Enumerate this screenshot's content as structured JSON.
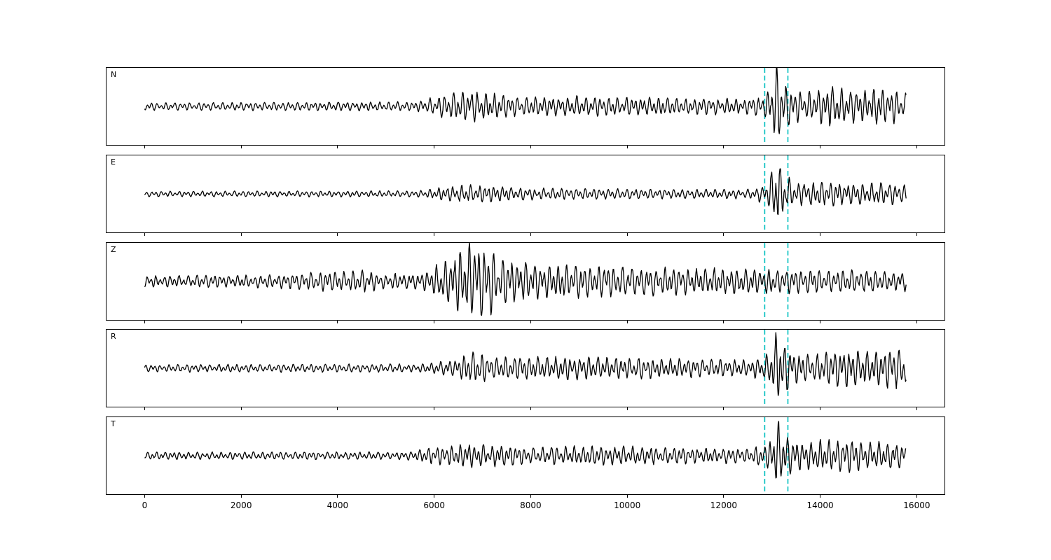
{
  "figure": {
    "background": "#ffffff",
    "title": ""
  },
  "chart_data": {
    "type": "line",
    "kind": "multi-panel-seismogram-waveforms",
    "title": "",
    "xlabel": "",
    "ylabel": "",
    "waveform_color": "#000000",
    "panels": [
      {
        "label": "N",
        "seed": 11,
        "envelope": [
          [
            0,
            0.1
          ],
          [
            5600,
            0.12
          ],
          [
            6200,
            0.3
          ],
          [
            6700,
            0.42
          ],
          [
            7200,
            0.34
          ],
          [
            7900,
            0.24
          ],
          [
            9000,
            0.27
          ],
          [
            10500,
            0.24
          ],
          [
            12500,
            0.2
          ],
          [
            12850,
            0.3
          ],
          [
            12980,
            0.6
          ],
          [
            13080,
            1.0
          ],
          [
            13200,
            0.85
          ],
          [
            13400,
            0.45
          ],
          [
            13800,
            0.38
          ],
          [
            14250,
            0.58
          ],
          [
            14700,
            0.42
          ],
          [
            15200,
            0.52
          ],
          [
            15784,
            0.38
          ]
        ]
      },
      {
        "label": "E",
        "seed": 22,
        "envelope": [
          [
            0,
            0.07
          ],
          [
            5600,
            0.08
          ],
          [
            6300,
            0.2
          ],
          [
            6900,
            0.24
          ],
          [
            7500,
            0.19
          ],
          [
            8400,
            0.15
          ],
          [
            10500,
            0.13
          ],
          [
            12500,
            0.12
          ],
          [
            12900,
            0.28
          ],
          [
            13020,
            0.7
          ],
          [
            13120,
            0.9
          ],
          [
            13250,
            0.55
          ],
          [
            13450,
            0.3
          ],
          [
            14000,
            0.33
          ],
          [
            14600,
            0.28
          ],
          [
            15200,
            0.31
          ],
          [
            15784,
            0.24
          ]
        ]
      },
      {
        "label": "Z",
        "seed": 33,
        "envelope": [
          [
            0,
            0.15
          ],
          [
            2500,
            0.17
          ],
          [
            4600,
            0.3
          ],
          [
            4900,
            0.19
          ],
          [
            5700,
            0.22
          ],
          [
            6200,
            0.5
          ],
          [
            6500,
            0.85
          ],
          [
            6800,
            1.0
          ],
          [
            7100,
            0.95
          ],
          [
            7500,
            0.6
          ],
          [
            8100,
            0.48
          ],
          [
            9000,
            0.42
          ],
          [
            10200,
            0.38
          ],
          [
            11500,
            0.34
          ],
          [
            12800,
            0.33
          ],
          [
            14000,
            0.31
          ],
          [
            15000,
            0.29
          ],
          [
            15784,
            0.26
          ]
        ]
      },
      {
        "label": "R",
        "seed": 44,
        "envelope": [
          [
            0,
            0.1
          ],
          [
            5700,
            0.11
          ],
          [
            6400,
            0.22
          ],
          [
            6800,
            0.45
          ],
          [
            7200,
            0.3
          ],
          [
            8200,
            0.29
          ],
          [
            9300,
            0.31
          ],
          [
            10800,
            0.26
          ],
          [
            12500,
            0.21
          ],
          [
            12880,
            0.33
          ],
          [
            13000,
            0.65
          ],
          [
            13100,
            1.0
          ],
          [
            13220,
            0.8
          ],
          [
            13450,
            0.42
          ],
          [
            13950,
            0.36
          ],
          [
            14450,
            0.56
          ],
          [
            15000,
            0.46
          ],
          [
            15500,
            0.56
          ],
          [
            15784,
            0.42
          ]
        ]
      },
      {
        "label": "T",
        "seed": 55,
        "envelope": [
          [
            0,
            0.1
          ],
          [
            5400,
            0.1
          ],
          [
            6100,
            0.26
          ],
          [
            6700,
            0.32
          ],
          [
            7300,
            0.29
          ],
          [
            8100,
            0.23
          ],
          [
            9400,
            0.26
          ],
          [
            11000,
            0.22
          ],
          [
            12500,
            0.19
          ],
          [
            12900,
            0.32
          ],
          [
            13030,
            0.7
          ],
          [
            13130,
            0.95
          ],
          [
            13260,
            0.6
          ],
          [
            13450,
            0.42
          ],
          [
            13950,
            0.4
          ],
          [
            14500,
            0.43
          ],
          [
            15100,
            0.36
          ],
          [
            15784,
            0.31
          ]
        ]
      }
    ],
    "x": {
      "lim": [
        -790,
        16575
      ],
      "ticks": [
        0,
        2000,
        4000,
        6000,
        8000,
        10000,
        12000,
        14000,
        16000
      ],
      "data_start": 0,
      "data_end": 15784,
      "step": 12
    },
    "vlines": {
      "x": [
        12850,
        13330
      ],
      "color": "#00BFBF",
      "style": "dashed"
    },
    "signal": {
      "periods": [
        95,
        170
      ],
      "amps": [
        0.75,
        0.45
      ],
      "jitter": 0.35,
      "noise": 0.12
    },
    "legend": null,
    "grid": false
  }
}
